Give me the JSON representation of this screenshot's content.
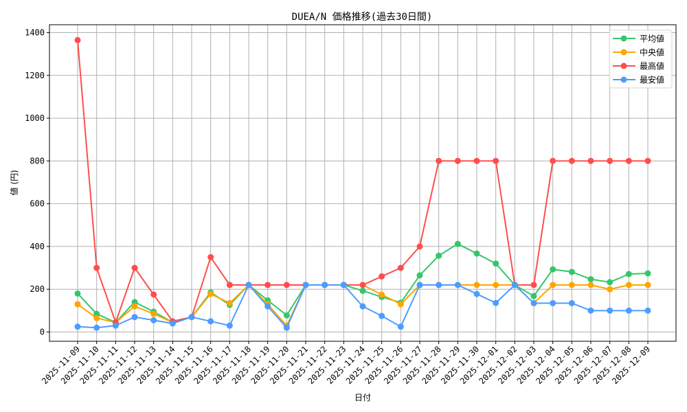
{
  "chart_data": {
    "type": "line",
    "title": "DUEA/N 価格推移(過去30日間)",
    "xlabel": "日付",
    "ylabel": "値 (円)",
    "ylim": [
      -45,
      1440
    ],
    "yticks": [
      0,
      200,
      400,
      600,
      800,
      1000,
      1200,
      1400
    ],
    "grid": true,
    "legend_position": "upper right",
    "categories": [
      "2025-11-09",
      "2025-11-10",
      "2025-11-11",
      "2025-11-12",
      "2025-11-13",
      "2025-11-14",
      "2025-11-15",
      "2025-11-16",
      "2025-11-17",
      "2025-11-18",
      "2025-11-19",
      "2025-11-20",
      "2025-11-21",
      "2025-11-22",
      "2025-11-23",
      "2025-11-24",
      "2025-11-25",
      "2025-11-26",
      "2025-11-27",
      "2025-11-28",
      "2025-11-29",
      "2025-11-30",
      "2025-12-01",
      "2025-12-02",
      "2025-12-03",
      "2025-12-04",
      "2025-12-05",
      "2025-12-06",
      "2025-12-07",
      "2025-12-08",
      "2025-12-09"
    ],
    "series": [
      {
        "name": "平均値",
        "color": "#33c76a",
        "values": [
          180,
          85,
          45,
          140,
          95,
          45,
          70,
          185,
          127,
          220,
          148,
          78,
          220,
          220,
          220,
          193,
          164,
          137,
          265,
          357,
          412,
          367,
          320,
          220,
          168,
          293,
          281,
          247,
          233,
          271,
          274
        ]
      },
      {
        "name": "中央値",
        "color": "#ffa500",
        "values": [
          130,
          65,
          45,
          120,
          85,
          45,
          70,
          178,
          135,
          220,
          130,
          30,
          220,
          220,
          220,
          220,
          175,
          130,
          220,
          220,
          220,
          220,
          220,
          220,
          135,
          220,
          220,
          220,
          200,
          220,
          220
        ]
      },
      {
        "name": "最高値",
        "color": "#ff4d4d",
        "values": [
          1365,
          300,
          45,
          300,
          175,
          50,
          70,
          350,
          220,
          220,
          220,
          220,
          220,
          220,
          220,
          220,
          260,
          300,
          400,
          800,
          800,
          800,
          800,
          220,
          220,
          800,
          800,
          800,
          800,
          800,
          800
        ]
      },
      {
        "name": "最安値",
        "color": "#4d9cff",
        "values": [
          25,
          20,
          30,
          70,
          55,
          40,
          70,
          50,
          30,
          220,
          120,
          20,
          220,
          220,
          220,
          120,
          75,
          25,
          220,
          220,
          220,
          178,
          136,
          220,
          135,
          135,
          135,
          100,
          100,
          100,
          100
        ]
      }
    ]
  }
}
